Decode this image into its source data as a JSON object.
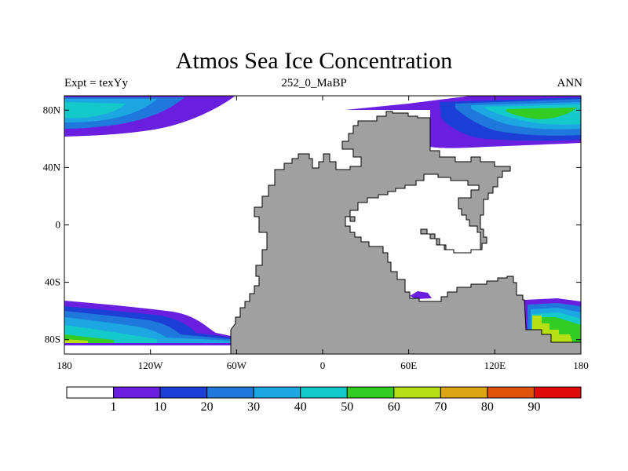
{
  "chart_data": {
    "type": "heatmap",
    "title": "Atmos Sea Ice Concentration",
    "subtitle_left": "Expt = texYy",
    "subtitle_center": "252_0_MaBP",
    "subtitle_right": "ANN",
    "x_ticks": [
      "180",
      "120W",
      "60W",
      "0",
      "60E",
      "120E",
      "180"
    ],
    "x_tick_values": [
      -180,
      -120,
      -60,
      0,
      60,
      120,
      180
    ],
    "y_ticks": [
      "80N",
      "40N",
      "0",
      "40S",
      "80S"
    ],
    "y_tick_values": [
      80,
      40,
      0,
      -40,
      -80
    ],
    "xlim": [
      -180,
      180
    ],
    "ylim": [
      -90,
      90
    ],
    "colorbar": {
      "levels": [
        "1",
        "10",
        "20",
        "30",
        "40",
        "50",
        "60",
        "70",
        "80",
        "90"
      ],
      "colors": [
        "#ffffff",
        "#6a1ee0",
        "#1c3fd8",
        "#1f78db",
        "#1ca6e2",
        "#14c9c9",
        "#33cc22",
        "#b8de14",
        "#dca514",
        "#e0540a",
        "#e00a0a"
      ]
    },
    "colors": {
      "land": "#a0a0a0",
      "purple": "#6a1ee0",
      "blue": "#1c3fd8",
      "mid_blue": "#1f78db",
      "light_blue": "#1ca6e2",
      "cyan": "#14c9c9",
      "green": "#33cc22",
      "yellow_green": "#b8de14"
    }
  }
}
